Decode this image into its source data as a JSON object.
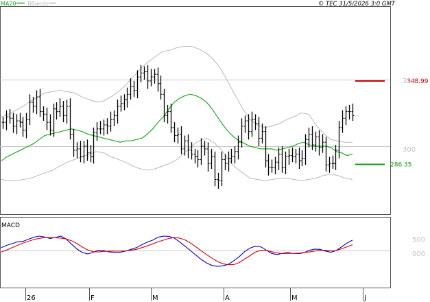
{
  "header": {
    "legend_ma": "MA20",
    "legend_bb": "BBands",
    "copyright": "© TEC 31/5/2026 3:0 GMT"
  },
  "colors": {
    "ma": "#1faa1f",
    "bands": "#b8b8b8",
    "price": "#000000",
    "macd": "#0000cc",
    "signal": "#dd0000",
    "resistance": "#cc0000",
    "support": "#119911",
    "grid": "#c8c8c8"
  },
  "chart_data": [
    {
      "type": "line",
      "name": "price",
      "title": "",
      "x_tick_labels": [
        "26",
        "F",
        "M",
        "A",
        "M",
        "J"
      ],
      "y_tick_labels": [
        "350",
        "300"
      ],
      "ylim": [
        235,
        385
      ],
      "grid": true,
      "closes": [
        318,
        322,
        321,
        315,
        319,
        318,
        312,
        320,
        333,
        330,
        337,
        326,
        324,
        318,
        312,
        328,
        326,
        330,
        323,
        330,
        309,
        297,
        298,
        292,
        300,
        295,
        292,
        310,
        313,
        313,
        316,
        315,
        320,
        323,
        330,
        332,
        335,
        339,
        345,
        342,
        352,
        355,
        356,
        349,
        352,
        354,
        347,
        339,
        323,
        326,
        314,
        308,
        309,
        298,
        304,
        297,
        294,
        292,
        290,
        300,
        298,
        287,
        292,
        275,
        274,
        290,
        287,
        291,
        292,
        296,
        303,
        315,
        319,
        311,
        320,
        317,
        306,
        311,
        289,
        284,
        284,
        288,
        294,
        284,
        292,
        293,
        292,
        294,
        289,
        291,
        305,
        309,
        301,
        307,
        299,
        303,
        286,
        287,
        287,
        297,
        314,
        321,
        326,
        326,
        323
      ],
      "series": [
        {
          "name": "MA20",
          "values": [
            289,
            292,
            294,
            296,
            298,
            300,
            302,
            305,
            308,
            309,
            310,
            311,
            312,
            313,
            312,
            311,
            309,
            308,
            307,
            306,
            305,
            304,
            303,
            304,
            304,
            305,
            306,
            309,
            313,
            318,
            322,
            328,
            333,
            336,
            338,
            339,
            338,
            336,
            333,
            328,
            322,
            316,
            311,
            307,
            304,
            302,
            300,
            299,
            298,
            298,
            298,
            297,
            298,
            299,
            300,
            302,
            303,
            301,
            300,
            300,
            300,
            299,
            296,
            295,
            293,
            294
          ]
        },
        {
          "name": "BBands upper",
          "values": [
            322,
            324,
            327,
            330,
            334,
            337,
            340,
            341,
            342,
            341,
            340,
            337,
            335,
            333,
            334,
            337,
            341,
            346,
            352,
            358,
            363,
            367,
            371,
            372,
            374,
            375,
            375,
            373,
            370,
            365,
            358,
            348,
            338,
            328,
            320,
            316,
            314,
            315,
            317,
            320,
            322,
            325,
            324,
            316,
            310,
            305,
            304,
            303,
            303
          ]
        },
        {
          "name": "BBands lower",
          "values": [
            275,
            274,
            274,
            275,
            276,
            278,
            280,
            282,
            285,
            288,
            290,
            292,
            294,
            296,
            295,
            292,
            290,
            288,
            285,
            283,
            282,
            283,
            285,
            287,
            290,
            295,
            300,
            304,
            306,
            303,
            298,
            290,
            284,
            280,
            276,
            275,
            274,
            275,
            276,
            276,
            275,
            274,
            275,
            276,
            278,
            279,
            278,
            276,
            275
          ]
        }
      ],
      "levels": [
        {
          "name": "resistance",
          "value": 348.99,
          "label": "348.99"
        },
        {
          "name": "support",
          "value": 286.35,
          "label": "286.35"
        }
      ]
    },
    {
      "type": "line",
      "title": "MACD",
      "y_tick_labels": [
        "500",
        "000"
      ],
      "series": [
        {
          "name": "MACD",
          "values": [
            1.0,
            1.8,
            2.4,
            3.0,
            3.2,
            3.9,
            4.6,
            5.0,
            4.7,
            4.2,
            4.5,
            5.0,
            4.0,
            2.2,
            0.5,
            -0.7,
            -1.2,
            -0.6,
            0.1,
            0.0,
            -0.5,
            -0.6,
            -0.6,
            -0.2,
            0.4,
            1.0,
            2.0,
            2.9,
            3.6,
            4.6,
            5.0,
            4.9,
            4.3,
            3.0,
            1.5,
            0.0,
            -1.6,
            -3.1,
            -4.3,
            -5.2,
            -5.5,
            -5.3,
            -4.8,
            -3.6,
            -2.2,
            -0.4,
            0.8,
            1.5,
            1.3,
            0.2,
            -1.0,
            -1.4,
            -1.0,
            -0.7,
            -1.0,
            -1.1,
            -0.8,
            0.1,
            0.5,
            0.4,
            -0.2,
            -0.6,
            0.0,
            1.3,
            2.6,
            3.6
          ]
        },
        {
          "name": "Signal",
          "values": [
            -0.5,
            0.2,
            1.0,
            1.8,
            2.6,
            3.2,
            3.8,
            4.2,
            4.5,
            4.5,
            4.4,
            4.3,
            4.0,
            3.4,
            2.4,
            1.2,
            0.2,
            -0.4,
            -0.5,
            -0.3,
            -0.2,
            -0.2,
            -0.2,
            -0.1,
            0.1,
            0.4,
            1.0,
            1.6,
            2.3,
            3.0,
            3.6,
            4.2,
            4.5,
            4.3,
            3.7,
            2.6,
            1.3,
            -0.1,
            -1.4,
            -2.7,
            -3.8,
            -4.6,
            -4.9,
            -4.9,
            -4.2,
            -3.0,
            -1.8,
            -0.6,
            0.1,
            0.1,
            -0.4,
            -0.8,
            -1.1,
            -1.0,
            -1.0,
            -0.9,
            -0.7,
            -0.5,
            -0.2,
            0.1,
            0.1,
            -0.1,
            0.0,
            0.6,
            1.3,
            2.0
          ]
        }
      ]
    }
  ]
}
